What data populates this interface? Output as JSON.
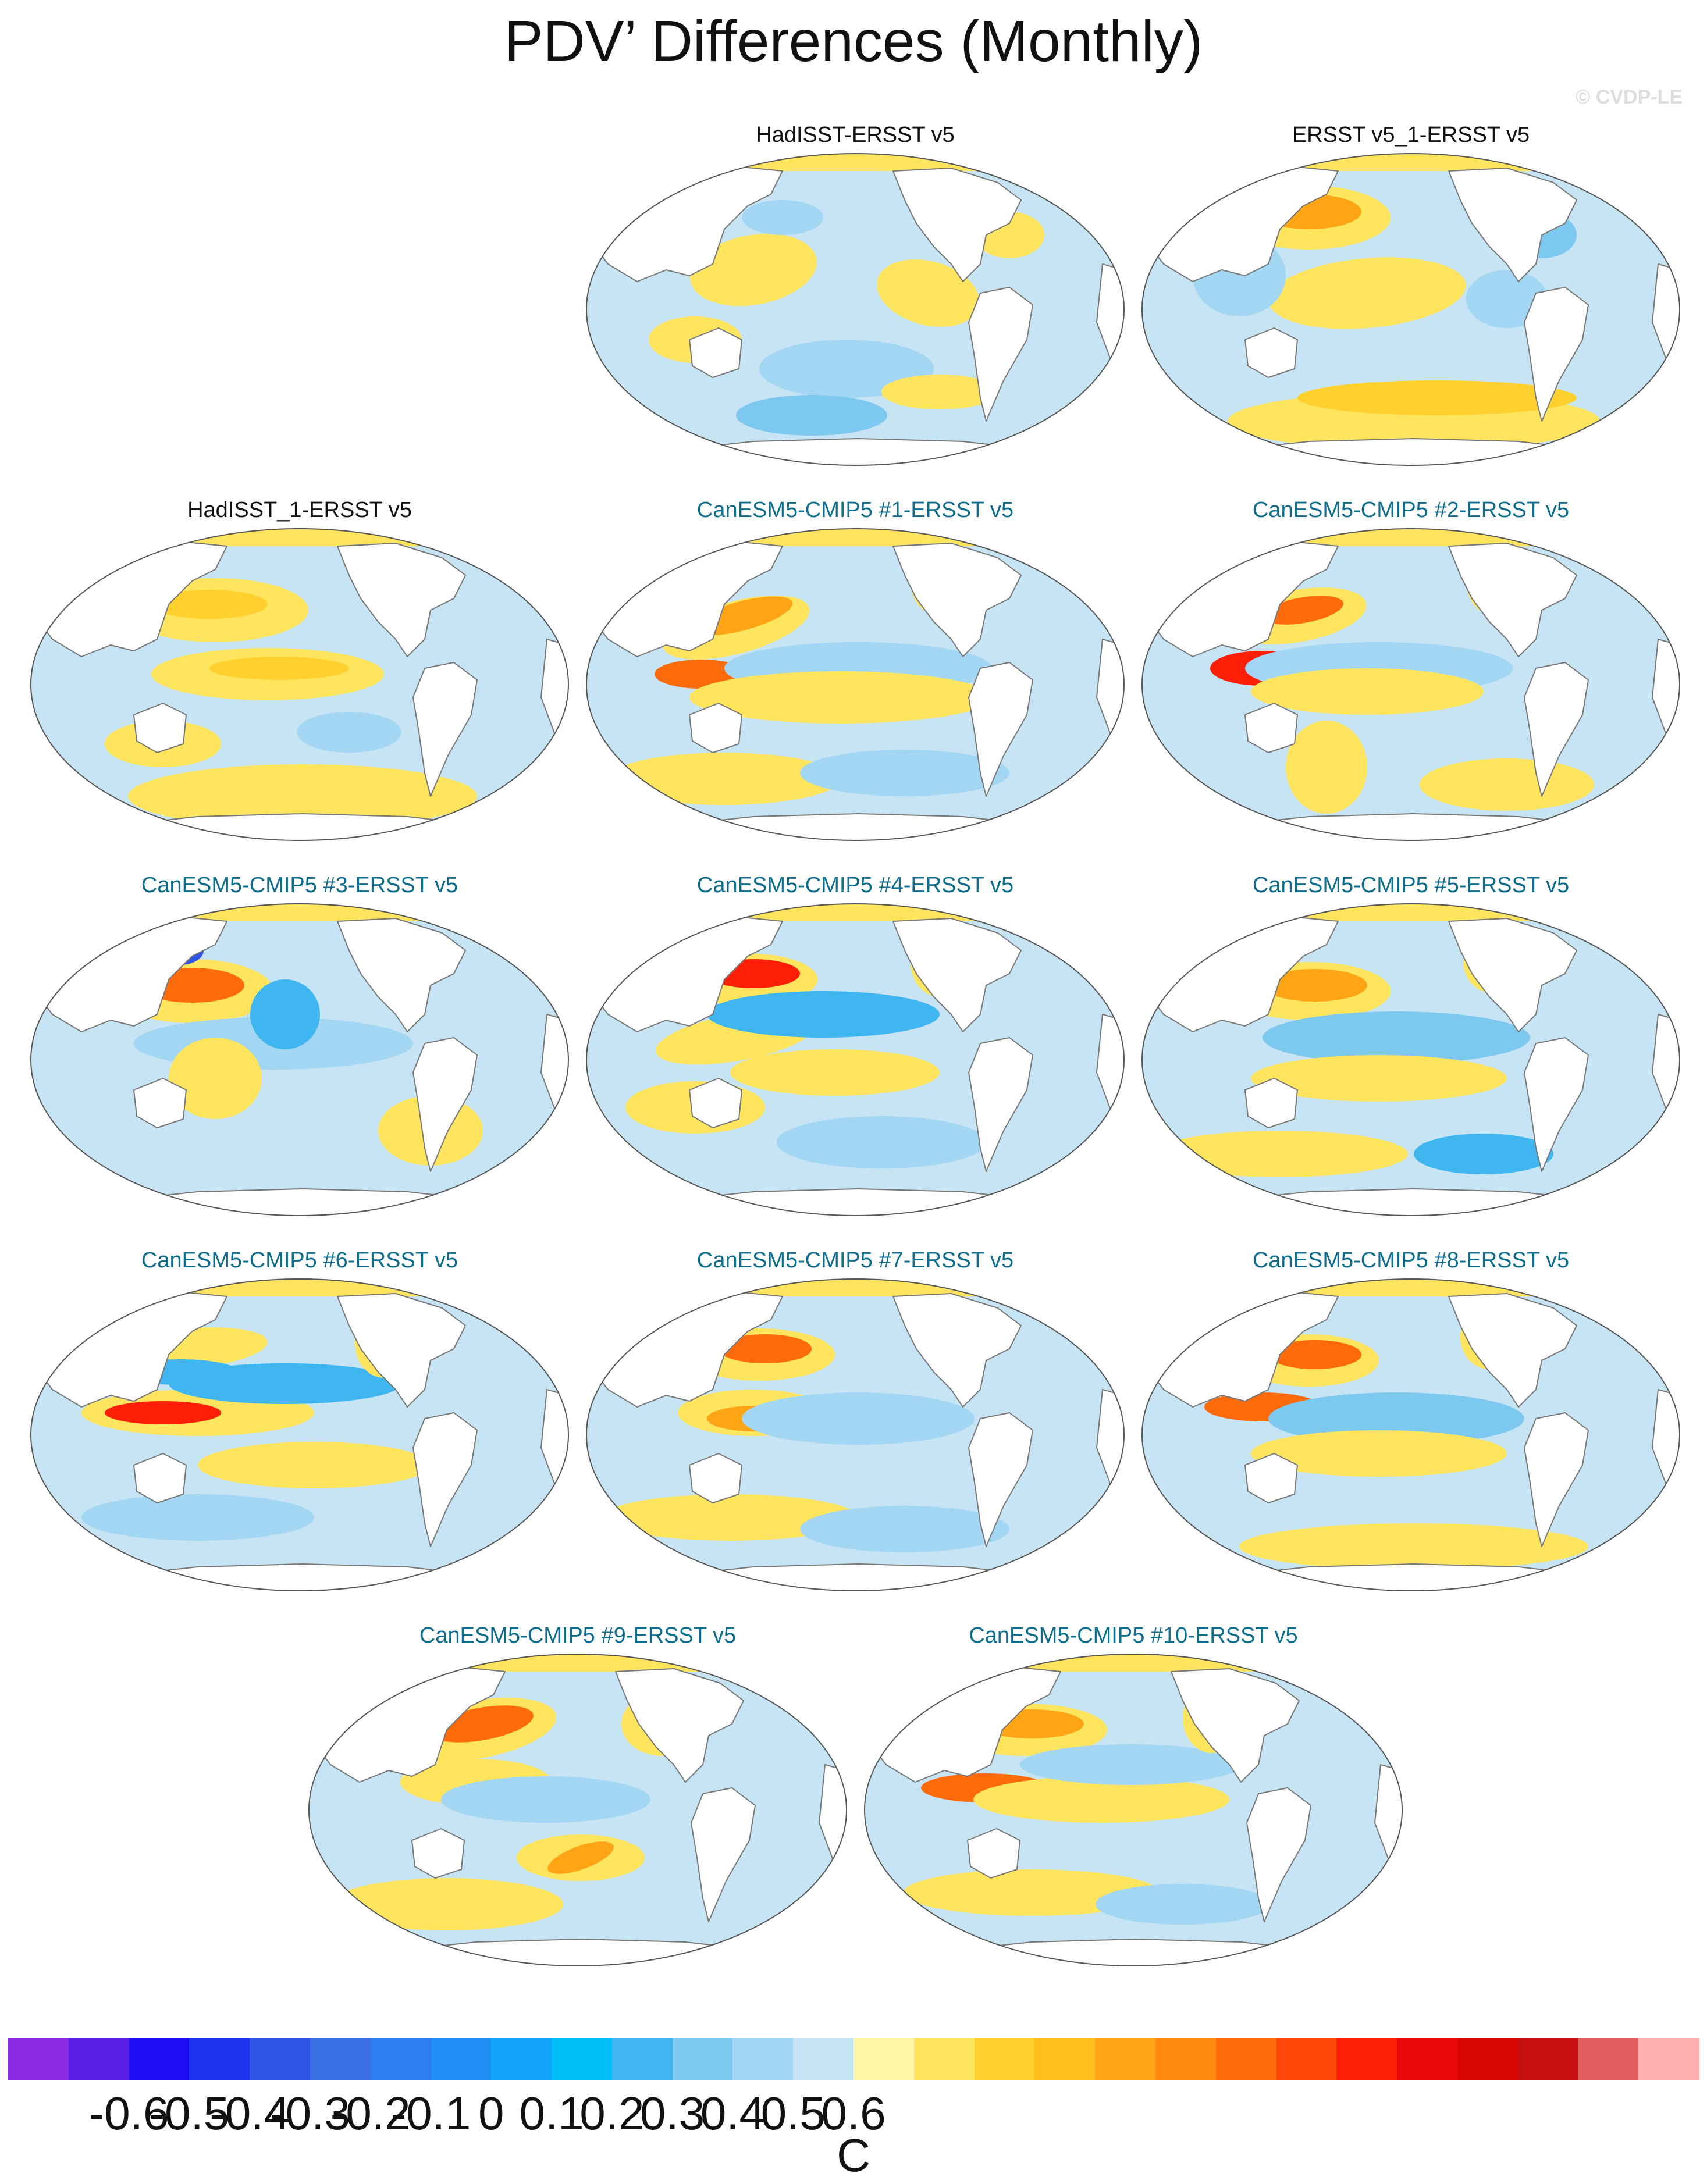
{
  "title": "PDV’ Differences (Monthly)",
  "copyright": "© CVDP-LE",
  "panels": [
    {
      "label": "HadISST-ERSST v5",
      "kind": "obs",
      "pattern": "hadisst"
    },
    {
      "label": "ERSST v5_1-ERSST v5",
      "kind": "obs",
      "pattern": "ersst1"
    },
    {
      "label": "HadISST_1-ERSST v5",
      "kind": "obs",
      "pattern": "hadisst1"
    },
    {
      "label": "CanESM5-CMIP5 #1-ERSST v5",
      "kind": "model",
      "pattern": "m1"
    },
    {
      "label": "CanESM5-CMIP5 #2-ERSST v5",
      "kind": "model",
      "pattern": "m2"
    },
    {
      "label": "CanESM5-CMIP5 #3-ERSST v5",
      "kind": "model",
      "pattern": "m3"
    },
    {
      "label": "CanESM5-CMIP5 #4-ERSST v5",
      "kind": "model",
      "pattern": "m4"
    },
    {
      "label": "CanESM5-CMIP5 #5-ERSST v5",
      "kind": "model",
      "pattern": "m5"
    },
    {
      "label": "CanESM5-CMIP5 #6-ERSST v5",
      "kind": "model",
      "pattern": "m6"
    },
    {
      "label": "CanESM5-CMIP5 #7-ERSST v5",
      "kind": "model",
      "pattern": "m7"
    },
    {
      "label": "CanESM5-CMIP5 #8-ERSST v5",
      "kind": "model",
      "pattern": "m8"
    },
    {
      "label": "CanESM5-CMIP5 #9-ERSST v5",
      "kind": "model",
      "pattern": "m9"
    },
    {
      "label": "CanESM5-CMIP5 #10-ERSST v5",
      "kind": "model",
      "pattern": "m10"
    }
  ],
  "colorbar": {
    "units": "C",
    "tick_labels": [
      "-0.6",
      "-0.5",
      "-0.4",
      "-0.3",
      "-0.2",
      "-0.1",
      "0",
      "0.1",
      "0.2",
      "0.3",
      "0.4",
      "0.5",
      "0.6"
    ],
    "colors": [
      "#8a2be2",
      "#5a1fe6",
      "#1e0cf5",
      "#1f34f0",
      "#2f55e6",
      "#3b6fe6",
      "#2f7ef0",
      "#1f8ff5",
      "#12a3fa",
      "#00bff8",
      "#3fb6f0",
      "#7cc8ef",
      "#a3d6f2",
      "#c6e4f3",
      "#fff7a8",
      "#ffe55e",
      "#ffd02e",
      "#ffbf1e",
      "#ffa515",
      "#ff8a0d",
      "#ff6a0a",
      "#ff4708",
      "#ff1f06",
      "#ea0a0a",
      "#d80505",
      "#c61010",
      "#e25d5d",
      "#ffb0b0"
    ]
  }
}
